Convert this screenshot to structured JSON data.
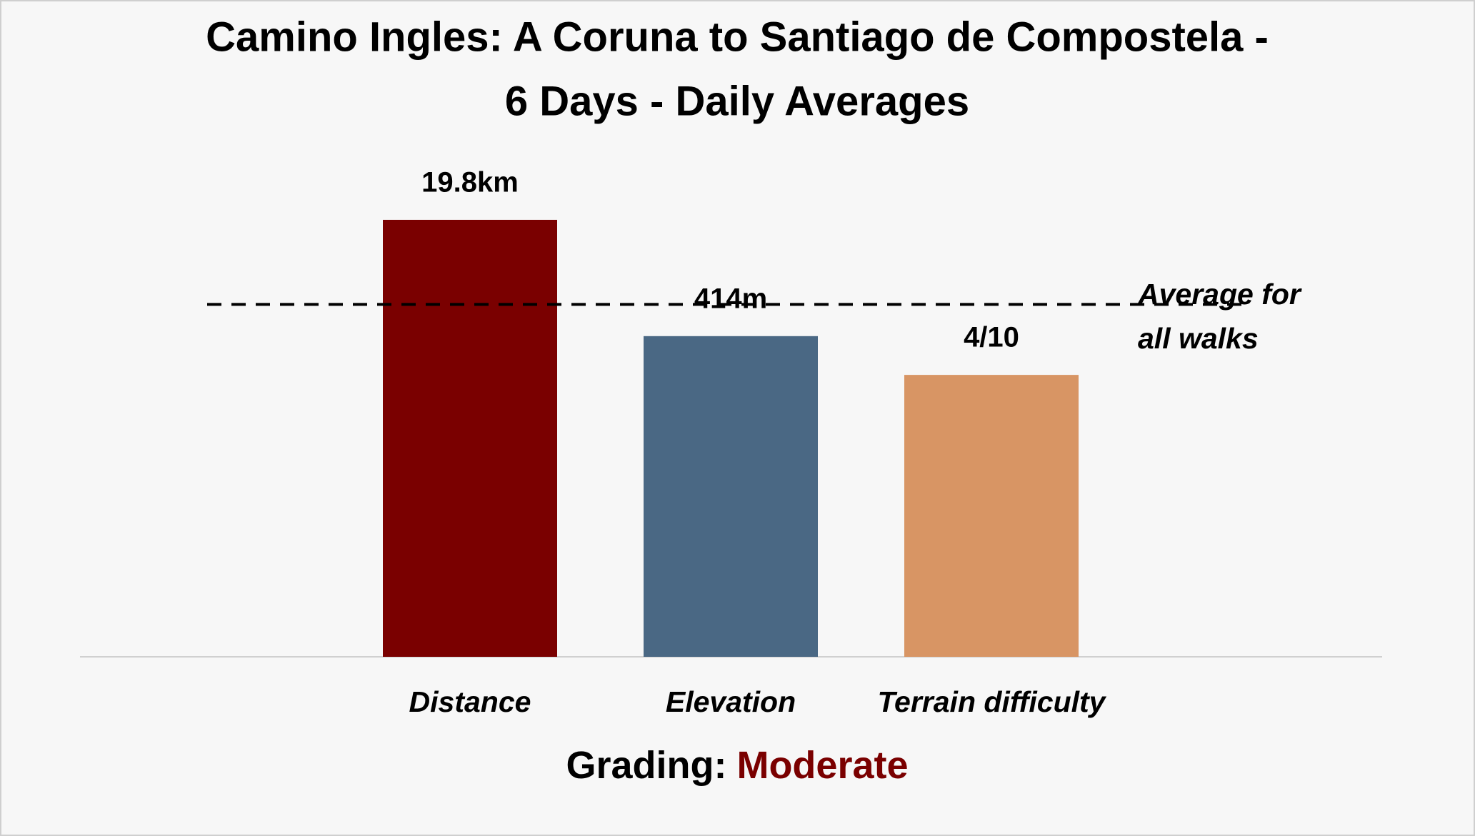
{
  "chart_data": {
    "type": "bar",
    "title": [
      "Camino Ingles: A Coruna to Santiago de Compostela -",
      "6 Days - Daily Averages"
    ],
    "categories": [
      "Distance",
      "Elevation",
      "Terrain difficulty"
    ],
    "values": [
      124,
      91,
      80
    ],
    "data_labels": [
      "19.8km",
      "414m",
      "4/10"
    ],
    "colors": [
      "#7a0000",
      "#4a6884",
      "#d89564"
    ],
    "ylim": [
      0,
      125
    ],
    "reference_line": {
      "value": 100,
      "label": [
        "Average for",
        "all walks"
      ]
    },
    "grading": {
      "label": "Grading:",
      "value": "Moderate",
      "color": "#7a0000"
    }
  }
}
